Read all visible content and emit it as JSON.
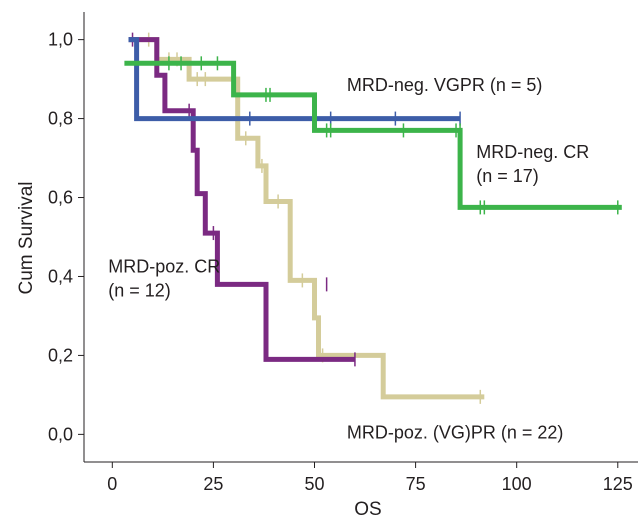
{
  "chart_data": {
    "type": "line",
    "subtype": "kaplan-meier",
    "title": "",
    "xlabel": "OS",
    "ylabel": "Cum Survival",
    "xlim": [
      -7,
      130
    ],
    "ylim": [
      -0.07,
      1.07
    ],
    "xticks": [
      0,
      25,
      50,
      75,
      100,
      125
    ],
    "xtick_labels": [
      "0",
      "25",
      "50",
      "75",
      "100",
      "125"
    ],
    "yticks": [
      0.0,
      0.2,
      0.4,
      0.6,
      0.8,
      1.0
    ],
    "ytick_labels": [
      "0,0",
      "0,2",
      "0,4",
      "0,6",
      "0,8",
      "1,0"
    ],
    "grid": false,
    "series": [
      {
        "name": "MRD-poz. (VG)PR (n = 22)",
        "color": "#d4cc9a",
        "x": [
          4,
          11,
          11,
          19,
          19,
          31,
          31,
          36,
          36,
          38,
          38,
          44,
          44,
          50,
          50,
          51,
          51,
          67,
          67,
          92
        ],
        "y": [
          1.0,
          1.0,
          0.95,
          0.95,
          0.9,
          0.9,
          0.75,
          0.75,
          0.68,
          0.68,
          0.59,
          0.59,
          0.39,
          0.39,
          0.295,
          0.295,
          0.2,
          0.2,
          0.095,
          0.095
        ],
        "censored": [
          [
            9,
            1.0
          ],
          [
            14,
            0.95
          ],
          [
            16,
            0.95
          ],
          [
            21,
            0.9
          ],
          [
            23,
            0.9
          ],
          [
            33,
            0.75
          ],
          [
            37,
            0.68
          ],
          [
            41,
            0.59
          ],
          [
            47,
            0.39
          ],
          [
            52,
            0.2
          ],
          [
            91,
            0.095
          ]
        ]
      },
      {
        "name": "MRD-poz. CR (n = 12)",
        "color": "#7b2a82",
        "x": [
          4,
          11,
          11,
          13,
          13,
          20,
          20,
          21,
          21,
          23,
          23,
          26,
          26,
          38,
          38,
          53,
          53,
          60
        ],
        "y": [
          1.0,
          1.0,
          0.91,
          0.91,
          0.82,
          0.82,
          0.72,
          0.72,
          0.61,
          0.61,
          0.51,
          0.51,
          0.38,
          0.38,
          0.19,
          0.19,
          0.19,
          0.19
        ],
        "censored": [
          [
            5,
            1.0
          ],
          [
            19,
            0.82
          ],
          [
            25,
            0.51
          ],
          [
            53,
            0.38
          ],
          [
            60,
            0.19
          ]
        ]
      },
      {
        "name": "MRD-neg. VGPR (n = 5)",
        "color": "#3d5da8",
        "x": [
          4,
          6,
          6,
          86
        ],
        "y": [
          1.0,
          1.0,
          0.8,
          0.8
        ],
        "censored": [
          [
            34,
            0.8
          ],
          [
            54,
            0.8
          ],
          [
            70,
            0.8
          ],
          [
            86,
            0.8
          ]
        ]
      },
      {
        "name": "MRD-neg. CR (n = 17)",
        "color": "#3cb44a",
        "x": [
          3,
          30,
          30,
          50,
          50,
          86,
          86,
          126
        ],
        "y": [
          0.94,
          0.94,
          0.86,
          0.86,
          0.77,
          0.77,
          0.575,
          0.575
        ],
        "censored": [
          [
            14,
            0.94
          ],
          [
            17,
            0.94
          ],
          [
            22,
            0.94
          ],
          [
            26,
            0.94
          ],
          [
            38,
            0.86
          ],
          [
            39,
            0.86
          ],
          [
            53,
            0.77
          ],
          [
            54,
            0.77
          ],
          [
            72,
            0.77
          ],
          [
            85,
            0.77
          ],
          [
            86,
            0.77
          ],
          [
            91,
            0.575
          ],
          [
            92,
            0.575
          ],
          [
            125,
            0.575
          ]
        ]
      }
    ],
    "annotations": [
      {
        "lines": [
          "MRD-neg. VGPR (n = 5)"
        ],
        "anchor": [
          58,
          0.87
        ]
      },
      {
        "lines": [
          "MRD-neg. CR",
          "(n = 17)"
        ],
        "anchor": [
          90,
          0.7
        ]
      },
      {
        "lines": [
          "MRD-poz. CR",
          "(n = 12)"
        ],
        "anchor": [
          -1,
          0.41
        ]
      },
      {
        "lines": [
          "MRD-poz. (VG)PR (n = 22)"
        ],
        "anchor": [
          58,
          -0.01
        ]
      }
    ]
  }
}
